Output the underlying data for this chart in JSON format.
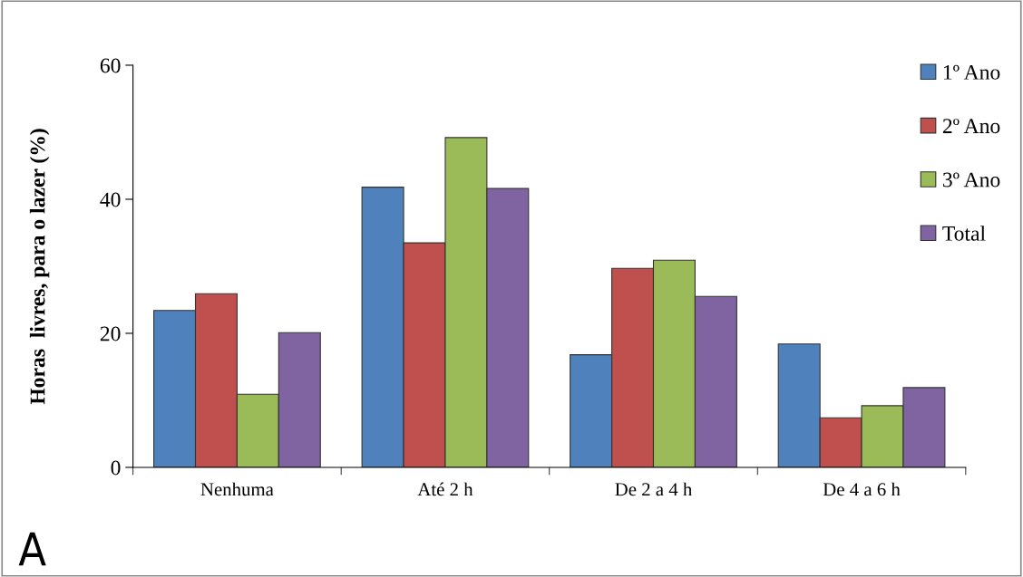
{
  "chart_data": {
    "type": "bar",
    "ylabel": "Horas  livres, para o lazer (%)",
    "categories": [
      "Nenhuma",
      "Até 2 h",
      "De 2 a 4 h",
      "De 4 a 6 h"
    ],
    "series": [
      {
        "name": "1º Ano",
        "color": "#4f81bd",
        "values": [
          23.4,
          41.8,
          16.8,
          18.4
        ]
      },
      {
        "name": "2º Ano",
        "color": "#c0504d",
        "values": [
          25.9,
          33.5,
          29.7,
          7.4
        ]
      },
      {
        "name": "3º Ano",
        "color": "#9bbb59",
        "values": [
          10.9,
          49.2,
          30.9,
          9.2
        ]
      },
      {
        "name": "Total",
        "color": "#8064a2",
        "values": [
          20.1,
          41.6,
          25.5,
          11.9
        ]
      }
    ],
    "ylim": [
      0,
      60
    ],
    "yticks": [
      0,
      20,
      40,
      60
    ],
    "grid": false,
    "legend": "top right",
    "annotations": [
      "A"
    ]
  }
}
